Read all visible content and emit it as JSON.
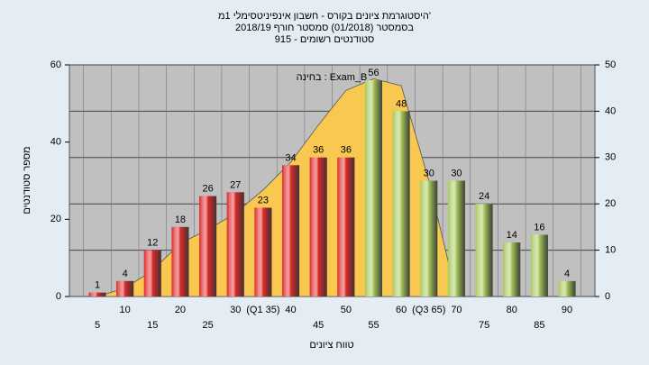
{
  "chart_data": {
    "type": "bar",
    "title": [
      "היסטוגרמת ציונים בקורס - חשבון אינפיניטסימלי 1מ'",
      "בסמסטר (01/2018) סמסטר חורף 2018/19",
      "סטודנטים רשומים - 915"
    ],
    "annotation": "בחינה : Exam_B",
    "ylabel": "מספר סטודנטים",
    "xlabel": "טווח ציונים",
    "categories": [
      "5",
      "10",
      "15",
      "20",
      "25",
      "30",
      "(Q1 35)",
      "40",
      "45",
      "50",
      "55",
      "60",
      "(Q3 65)",
      "70",
      "75",
      "80",
      "85",
      "90"
    ],
    "series": [
      {
        "type": "area",
        "axis": "y2",
        "color": "#f8c850",
        "values": [
          0,
          1.8,
          5.6,
          11.5,
          14.4,
          18,
          23,
          29,
          37,
          44.5,
          47,
          45.5,
          25,
          0,
          null,
          null,
          null,
          null
        ]
      },
      {
        "type": "bar",
        "colors": [
          "#e02828",
          "#e02828",
          "#e02828",
          "#e02828",
          "#e02828",
          "#e02828",
          "#e02828",
          "#e02828",
          "#e02828",
          "#e02828",
          "#a6c85a",
          "#a6c85a",
          "#a6c85a",
          "#a6c85a",
          "#a6c85a",
          "#a6c85a",
          "#a6c85a",
          "#a6c85a"
        ],
        "values": [
          1,
          4,
          12,
          18,
          26,
          27,
          23,
          34,
          36,
          36,
          56,
          48,
          30,
          30,
          24,
          14,
          16,
          4
        ]
      }
    ],
    "ylim": [
      0,
      60
    ],
    "yticks": [
      0,
      20,
      40,
      60
    ],
    "y2lim": [
      0,
      50
    ],
    "y2ticks": [
      0,
      10,
      20,
      30,
      40,
      50
    ],
    "grid": true
  }
}
